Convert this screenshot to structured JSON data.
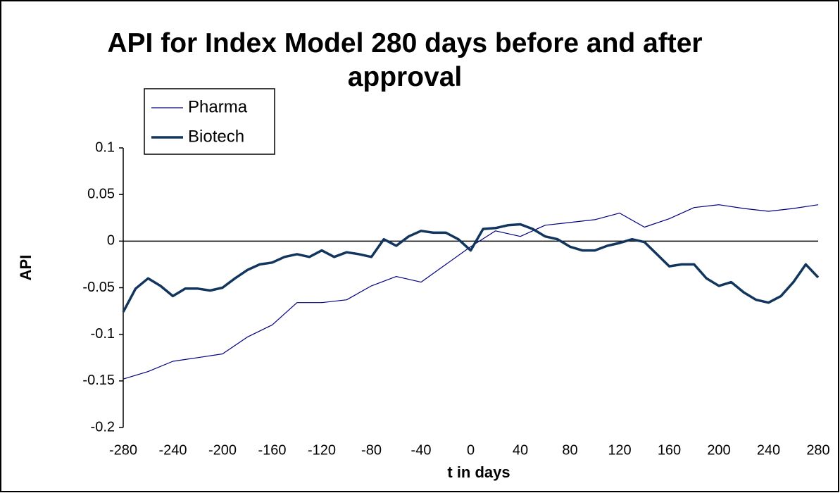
{
  "chart_data": {
    "type": "line",
    "title": "API for Index Model 280 days before and after approval",
    "xlabel": "t in days",
    "ylabel": "API",
    "xlim": [
      -280,
      280
    ],
    "xticks": [
      -280,
      -240,
      -200,
      -160,
      -120,
      -80,
      -40,
      0,
      40,
      80,
      120,
      160,
      200,
      240,
      280
    ],
    "ylim": [
      -0.2,
      0.1
    ],
    "yticks": [
      -0.2,
      -0.15,
      -0.1,
      -0.05,
      0,
      0.05,
      0.1
    ],
    "legend": "upper left",
    "series": [
      {
        "name": "Pharma",
        "color": "#000080",
        "x": [
          -280,
          -260,
          -240,
          -220,
          -200,
          -180,
          -160,
          -140,
          -120,
          -100,
          -80,
          -60,
          -40,
          -20,
          0,
          20,
          40,
          60,
          80,
          100,
          120,
          140,
          160,
          180,
          200,
          220,
          240,
          260,
          280
        ],
        "values": [
          -0.148,
          -0.14,
          -0.129,
          -0.125,
          -0.121,
          -0.103,
          -0.09,
          -0.066,
          -0.066,
          -0.063,
          -0.048,
          -0.038,
          -0.044,
          -0.025,
          -0.006,
          0.011,
          0.005,
          0.017,
          0.02,
          0.023,
          0.03,
          0.015,
          0.024,
          0.036,
          0.039,
          0.035,
          0.032,
          0.035,
          0.039
        ]
      },
      {
        "name": "Biotech",
        "color": "#12355e",
        "x": [
          -280,
          -270,
          -260,
          -250,
          -240,
          -230,
          -220,
          -210,
          -200,
          -190,
          -180,
          -170,
          -160,
          -150,
          -140,
          -130,
          -120,
          -110,
          -100,
          -90,
          -80,
          -70,
          -60,
          -50,
          -40,
          -30,
          -20,
          -10,
          0,
          10,
          20,
          30,
          40,
          50,
          60,
          70,
          80,
          90,
          100,
          110,
          120,
          130,
          140,
          150,
          160,
          170,
          180,
          190,
          200,
          210,
          220,
          230,
          240,
          250,
          260,
          270,
          280
        ],
        "values": [
          -0.076,
          -0.051,
          -0.04,
          -0.048,
          -0.059,
          -0.051,
          -0.051,
          -0.053,
          -0.05,
          -0.04,
          -0.031,
          -0.025,
          -0.023,
          -0.017,
          -0.014,
          -0.017,
          -0.01,
          -0.017,
          -0.012,
          -0.014,
          -0.017,
          0.002,
          -0.005,
          0.005,
          0.011,
          0.009,
          0.009,
          0.002,
          -0.01,
          0.013,
          0.014,
          0.017,
          0.018,
          0.013,
          0.005,
          0.002,
          -0.006,
          -0.01,
          -0.01,
          -0.005,
          -0.002,
          0.002,
          -0.001,
          -0.014,
          -0.027,
          -0.025,
          -0.025,
          -0.04,
          -0.048,
          -0.044,
          -0.055,
          -0.063,
          -0.066,
          -0.059,
          -0.044,
          -0.025,
          -0.039
        ]
      }
    ]
  }
}
